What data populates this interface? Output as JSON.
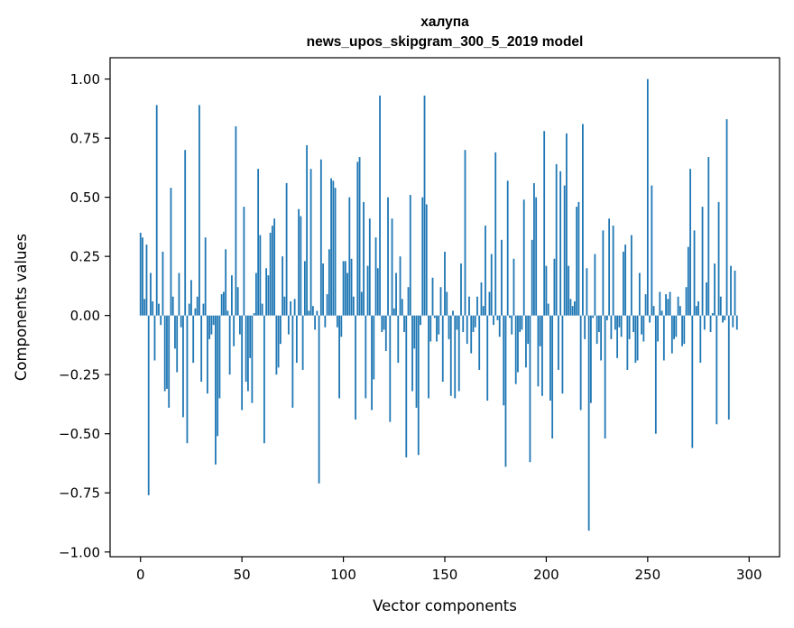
{
  "chart_data": {
    "type": "bar",
    "title": "халупа",
    "subtitle": "news_upos_skipgram_300_5_2019 model",
    "xlabel": "Vector components",
    "ylabel": "Components values",
    "xlim": [
      -15,
      315
    ],
    "ylim": [
      -1.02,
      1.09
    ],
    "xticks": [
      0,
      50,
      100,
      150,
      200,
      250,
      300
    ],
    "yticks": [
      -1.0,
      -0.75,
      -0.5,
      -0.25,
      0.0,
      0.25,
      0.5,
      0.75,
      1.0
    ],
    "xtick_labels": [
      "0",
      "50",
      "100",
      "150",
      "200",
      "250",
      "300"
    ],
    "ytick_labels": [
      "−1.00",
      "−0.75",
      "−0.50",
      "−0.25",
      "0.00",
      "0.25",
      "0.50",
      "0.75",
      "1.00"
    ],
    "bar_color": "#1f77b4",
    "grid": false,
    "values": [
      0.35,
      0.33,
      0.07,
      0.3,
      -0.76,
      0.18,
      0.06,
      -0.19,
      0.89,
      0.05,
      -0.04,
      0.27,
      -0.32,
      -0.31,
      -0.39,
      0.54,
      0.08,
      -0.14,
      -0.24,
      0.18,
      -0.05,
      -0.43,
      0.7,
      -0.54,
      0.05,
      0.15,
      -0.2,
      0.03,
      0.08,
      0.89,
      -0.28,
      0.05,
      0.33,
      -0.33,
      -0.1,
      -0.08,
      -0.04,
      -0.63,
      -0.51,
      -0.35,
      0.09,
      0.1,
      0.28,
      0.02,
      -0.25,
      0.17,
      -0.13,
      0.8,
      0.12,
      -0.08,
      -0.4,
      0.46,
      -0.28,
      -0.32,
      -0.18,
      -0.37,
      0.01,
      0.18,
      0.62,
      0.34,
      0.05,
      -0.54,
      0.2,
      0.17,
      0.35,
      0.38,
      0.41,
      -0.25,
      -0.22,
      -0.12,
      0.25,
      0.08,
      0.56,
      -0.08,
      0.06,
      -0.39,
      0.07,
      -0.2,
      0.45,
      0.42,
      -0.23,
      0.23,
      0.72,
      0.02,
      0.62,
      0.04,
      -0.06,
      0.02,
      -0.71,
      0.66,
      0.22,
      -0.05,
      0.09,
      0.28,
      0.58,
      0.57,
      0.54,
      -0.05,
      -0.35,
      -0.09,
      0.23,
      0.23,
      0.18,
      0.5,
      0.24,
      0.08,
      -0.44,
      0.65,
      0.67,
      0.1,
      0.48,
      -0.35,
      0.21,
      0.41,
      -0.4,
      -0.27,
      0.33,
      0.2,
      0.93,
      -0.07,
      -0.06,
      -0.15,
      0.5,
      -0.45,
      0.41,
      0.03,
      0.18,
      -0.2,
      0.25,
      0.07,
      -0.07,
      -0.6,
      0.12,
      0.51,
      -0.32,
      -0.14,
      -0.39,
      -0.59,
      -0.04,
      0.5,
      0.93,
      0.47,
      -0.35,
      -0.11,
      0.16,
      -0.01,
      -0.11,
      -0.08,
      0.12,
      -0.28,
      0.27,
      0.1,
      -0.1,
      -0.34,
      0.02,
      -0.35,
      -0.06,
      -0.32,
      0.22,
      -0.07,
      0.7,
      -0.12,
      0.08,
      -0.16,
      -0.07,
      -0.05,
      0.08,
      -0.23,
      0.14,
      0.04,
      0.38,
      -0.36,
      0.1,
      0.26,
      -0.04,
      0.69,
      -0.02,
      -0.09,
      0.32,
      -0.38,
      -0.64,
      0.57,
      -0.01,
      -0.08,
      0.24,
      -0.29,
      -0.24,
      -0.07,
      -0.06,
      0.49,
      -0.22,
      -0.12,
      -0.62,
      0.32,
      0.56,
      0.5,
      -0.3,
      -0.13,
      -0.34,
      0.78,
      0.21,
      0.05,
      -0.36,
      -0.52,
      0.24,
      0.64,
      -0.23,
      0.61,
      -0.33,
      0.55,
      0.77,
      0.21,
      0.07,
      0.04,
      0.06,
      0.46,
      0.48,
      -0.4,
      0.81,
      -0.1,
      0.2,
      -0.91,
      -0.37,
      -0.01,
      0.26,
      -0.12,
      -0.07,
      -0.19,
      0.36,
      -0.52,
      -0.02,
      0.41,
      -0.1,
      0.38,
      -0.06,
      -0.18,
      -0.05,
      -0.09,
      0.27,
      0.3,
      -0.23,
      -0.1,
      0.34,
      -0.07,
      -0.2,
      -0.19,
      0.18,
      -0.08,
      -0.11,
      0.09,
      1.0,
      -0.03,
      0.55,
      0.04,
      -0.5,
      -0.11,
      0.1,
      0.02,
      -0.19,
      0.09,
      0.07,
      0.1,
      -0.16,
      -0.1,
      -0.09,
      0.08,
      0.04,
      -0.13,
      -0.12,
      0.12,
      0.29,
      0.62,
      -0.56,
      0.36,
      0.04,
      0.06,
      -0.2,
      0.46,
      -0.06,
      0.14,
      0.67,
      -0.07,
      0.01,
      0.22,
      -0.46,
      0.48,
      0.08,
      -0.03,
      -0.02,
      0.83,
      -0.44,
      0.21,
      -0.05,
      0.19,
      -0.06
    ]
  }
}
